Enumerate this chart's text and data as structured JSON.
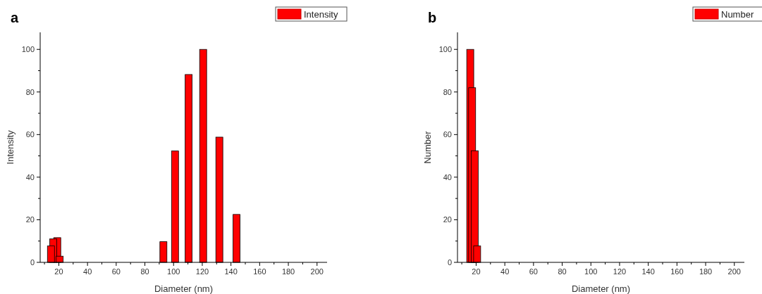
{
  "chart_data": [
    {
      "type": "bar",
      "title": "a",
      "xlabel": "Diameter (nm)",
      "ylabel": "Intensity",
      "legend": "top right",
      "series": [
        {
          "name": "Intensity",
          "color": "#ff0000",
          "x": [
            14.5,
            16.1,
            18.9,
            20.6,
            92.9,
            101,
            110.5,
            120.6,
            131.9,
            143.9
          ],
          "values": [
            7.7,
            11,
            11.6,
            2.9,
            9.7,
            52.3,
            88.2,
            100,
            58.8,
            22.5
          ]
        }
      ],
      "xlim": [
        7,
        207
      ],
      "xticks": [
        {
          "value": 10,
          "label": null
        },
        20,
        {
          "value": 30,
          "label": null
        },
        40,
        {
          "value": 50,
          "label": null
        },
        60,
        {
          "value": 70,
          "label": null
        },
        80,
        {
          "value": 90,
          "label": null
        },
        100,
        {
          "value": 110,
          "label": null
        },
        120,
        {
          "value": 130,
          "label": null
        },
        140,
        {
          "value": 150,
          "label": null
        },
        160,
        {
          "value": 170,
          "label": null
        },
        180,
        {
          "value": 190,
          "label": null
        },
        200
      ],
      "ylim": [
        0,
        108
      ],
      "yticks": [
        0,
        {
          "value": 10,
          "label": null
        },
        20,
        {
          "value": 30,
          "label": null
        },
        40,
        {
          "value": 50,
          "label": null
        },
        60,
        {
          "value": 70,
          "label": null
        },
        80,
        {
          "value": 90,
          "label": null
        },
        100
      ]
    },
    {
      "type": "bar",
      "title": "b",
      "xlabel": "Diameter (nm)",
      "ylabel": "Number",
      "legend": "top right",
      "series": [
        {
          "name": "Number",
          "color": "#ff0000",
          "x": [
            15.9,
            17.2,
            19,
            20.7
          ],
          "values": [
            100,
            82,
            52.4,
            7.7
          ]
        }
      ],
      "xlim": [
        7,
        207
      ],
      "xticks": [
        {
          "value": 10,
          "label": null
        },
        20,
        {
          "value": 30,
          "label": null
        },
        40,
        {
          "value": 50,
          "label": null
        },
        60,
        {
          "value": 70,
          "label": null
        },
        80,
        {
          "value": 90,
          "label": null
        },
        100,
        {
          "value": 110,
          "label": null
        },
        120,
        {
          "value": 130,
          "label": null
        },
        140,
        {
          "value": 150,
          "label": null
        },
        160,
        {
          "value": 170,
          "label": null
        },
        180,
        {
          "value": 190,
          "label": null
        },
        200
      ],
      "ylim": [
        0,
        108
      ],
      "yticks": [
        0,
        {
          "value": 10,
          "label": null
        },
        20,
        {
          "value": 30,
          "label": null
        },
        40,
        {
          "value": 50,
          "label": null
        },
        60,
        {
          "value": 70,
          "label": null
        },
        80,
        {
          "value": 90,
          "label": null
        },
        100
      ]
    }
  ]
}
